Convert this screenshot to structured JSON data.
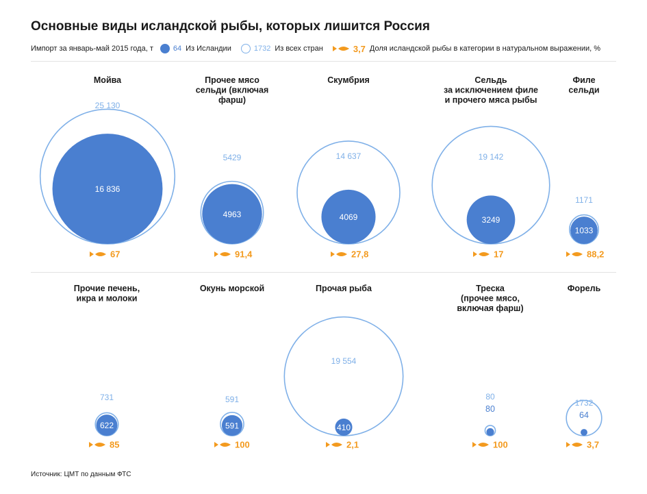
{
  "title": "Основные виды исландской рыбы, которых лишится Россия",
  "legend": {
    "period": "Импорт за январь-май 2015 года, т",
    "iceland_example": "64",
    "iceland_label": "Из Исландии",
    "all_example": "1732",
    "all_label": "Из всех стран",
    "share_example": "3,7",
    "share_label": "Доля исландской рыбы в категории в натуральном выражении, %"
  },
  "source": {
    "label": "Источник:",
    "value": "ЦМТ по данным ФТС"
  },
  "colors": {
    "iceland": "#4a7fd0",
    "all_countries": "#7fb0e8",
    "share": "#f39a1e"
  },
  "chart_data": {
    "type": "bubble",
    "title": "Основные виды исландской рыбы, которых лишится Россия",
    "units": "т",
    "series": [
      {
        "name": "Из Исландии"
      },
      {
        "name": "Из всех стран"
      },
      {
        "name": "Доля исландской рыбы в категории в натуральном выражении, %"
      }
    ],
    "categories": [
      {
        "lines": [
          "Мойва"
        ],
        "iceland": 16836,
        "iceland_label": "16 836",
        "total": 25130,
        "total_label": "25 130",
        "share": 67,
        "share_label": "67"
      },
      {
        "lines": [
          "Прочее мясо",
          "сельди (включая",
          "фарш)"
        ],
        "iceland": 4963,
        "iceland_label": "4963",
        "total": 5429,
        "total_label": "5429",
        "share": 91.4,
        "share_label": "91,4"
      },
      {
        "lines": [
          "Скумбрия"
        ],
        "iceland": 4069,
        "iceland_label": "4069",
        "total": 14637,
        "total_label": "14 637",
        "share": 27.8,
        "share_label": "27,8"
      },
      {
        "lines": [
          "Сельдь",
          "за исключением филе",
          "и прочего мяса рыбы"
        ],
        "iceland": 3249,
        "iceland_label": "3249",
        "total": 19142,
        "total_label": "19 142",
        "share": 17,
        "share_label": "17"
      },
      {
        "lines": [
          "Филе",
          "сельди"
        ],
        "iceland": 1033,
        "iceland_label": "1033",
        "total": 1171,
        "total_label": "1171",
        "share": 88.2,
        "share_label": "88,2"
      },
      {
        "lines": [
          "Прочие печень,",
          "икра и молоки"
        ],
        "iceland": 622,
        "iceland_label": "622",
        "total": 731,
        "total_label": "731",
        "share": 85,
        "share_label": "85"
      },
      {
        "lines": [
          "Окунь морской"
        ],
        "iceland": 591,
        "iceland_label": "591",
        "total": 591,
        "total_label": "591",
        "share": 100,
        "share_label": "100"
      },
      {
        "lines": [
          "Прочая рыба"
        ],
        "iceland": 410,
        "iceland_label": "410",
        "total": 19554,
        "total_label": "19 554",
        "share": 2.1,
        "share_label": "2,1"
      },
      {
        "lines": [
          "Треска",
          "(прочее мясо,",
          "включая фарш)"
        ],
        "iceland": 80,
        "iceland_label": "80",
        "total": 80,
        "total_label": "80",
        "share": 100,
        "share_label": "100"
      },
      {
        "lines": [
          "Форель"
        ],
        "iceland": 64,
        "iceland_label": "64",
        "total": 1732,
        "total_label": "1732",
        "share": 3.7,
        "share_label": "3,7"
      }
    ]
  }
}
